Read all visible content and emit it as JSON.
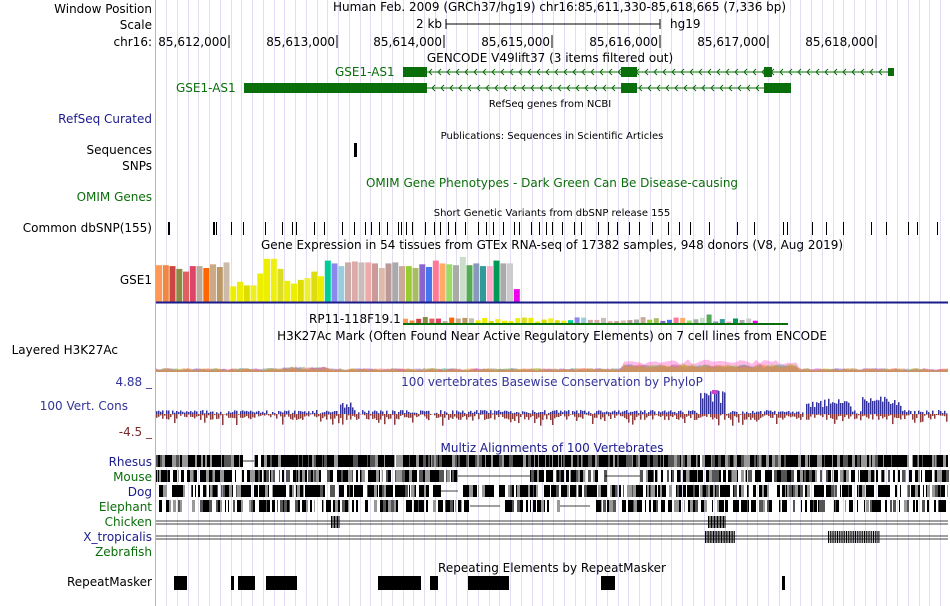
{
  "header": {
    "window_position_label": "Window Position",
    "scale_label": "Scale",
    "chrom_label": "chr16:",
    "assembly_text": "Human Feb. 2009 (GRCh37/hg19)   chr16:85,611,330-85,618,665 (7,336 bp)",
    "scale_text": "2 kb",
    "db_text": "hg19",
    "ruler_ticks": [
      "85,612,000",
      "85,613,000",
      "85,614,000",
      "85,615,000",
      "85,616,000",
      "85,617,000",
      "85,618,000"
    ]
  },
  "tracks": {
    "gencode": {
      "title": "GENCODE V49lift37 (3 items filtered out)",
      "genes": [
        {
          "name": "GSE1-AS1",
          "color": "#0a6e0a"
        },
        {
          "name": "GSE1-AS1",
          "color": "#0a6e0a"
        }
      ]
    },
    "refseq": {
      "label": "RefSeq Curated",
      "title": "RefSeq genes from NCBI",
      "color": "#1b1b8c"
    },
    "publications": {
      "title": "Publications: Sequences in Scientific Articles",
      "label": "Sequences"
    },
    "snps": {
      "label": "SNPs"
    },
    "omim": {
      "label": "OMIM Genes",
      "title": "OMIM Gene Phenotypes - Dark Green Can Be Disease-causing",
      "color": "#0a6e0a"
    },
    "dbsnp": {
      "label": "Common dbSNP(155)",
      "title": "Short Genetic Variants from dbSNP release 155"
    },
    "gtex": {
      "title": "Gene Expression in 54 tissues from GTEx RNA-seq of 17382 samples, 948 donors (V8, Aug 2019)",
      "label": "GSE1",
      "gene2": "RP11-118F19.1",
      "bar_levels": [
        0.8,
        0.8,
        0.78,
        0.72,
        0.66,
        0.78,
        0.78,
        0.74,
        0.82,
        0.76,
        0.86,
        0.34,
        0.44,
        0.36,
        0.36,
        0.62,
        0.94,
        0.94,
        0.72,
        0.46,
        0.4,
        0.48,
        0.52,
        0.66,
        0.56,
        0.9,
        0.84,
        0.78,
        0.86,
        0.88,
        0.86,
        0.86,
        0.84,
        0.74,
        0.84,
        0.86,
        0.78,
        0.78,
        0.74,
        0.82,
        0.76,
        0.9,
        0.84,
        0.82,
        0.8,
        0.98,
        0.8,
        0.84,
        0.78,
        0.78,
        0.9,
        0.84,
        0.84,
        0.28
      ],
      "bar_colors": [
        "#ff9955",
        "#ee8844",
        "#cc4444",
        "#8b8b44",
        "#e06060",
        "#dd4466",
        "#bbaa99",
        "#ff6600",
        "#ccaa88",
        "#bb9966",
        "#ccbbaa",
        "#eeee00",
        "#eeee00",
        "#dddd00",
        "#eeee22",
        "#eeee00",
        "#eeee00",
        "#eeee11",
        "#dddd22",
        "#eeee00",
        "#eeee00",
        "#dddd00",
        "#eeee33",
        "#dddd11",
        "#eeee00",
        "#00cc99",
        "#8888ee",
        "#99ccdd",
        "#ccaaaa",
        "#ddaaaa",
        "#ccbbbb",
        "#eeaaaa",
        "#cc9999",
        "#ddbbaa",
        "#bb9999",
        "#aaaaaa",
        "#ccaa99",
        "#99cc33",
        "#aabb66",
        "#8866cc",
        "#4477ee",
        "#ff7799",
        "#ffaa66",
        "#99dd66",
        "#aaaaaa",
        "#ccddcc",
        "#55aa55",
        "#8899bb",
        "#339999",
        "#ffaacc",
        "#009955",
        "#aaaaaa",
        "#cccccc",
        "#ee00ee"
      ]
    },
    "h3k27ac": {
      "label": "Layered H3K27Ac",
      "title": "H3K27Ac Mark (Often Found Near Active Regulatory Elements) on 7 cell lines from ENCODE"
    },
    "phylop": {
      "label": "100 Vert. Cons",
      "title": "100 vertebrates Basewise Conservation by PhyloP",
      "max": "4.88 _",
      "min": "-4.5 _",
      "color": "#333399"
    },
    "multiz": {
      "title": "Multiz Alignments of 100 Vertebrates",
      "species": [
        "Rhesus",
        "Mouse",
        "Dog",
        "Elephant",
        "Chicken",
        "X_tropicalis",
        "Zebrafish"
      ]
    },
    "repeatmasker": {
      "label": "RepeatMasker",
      "title": "Repeating Elements by RepeatMasker"
    }
  }
}
